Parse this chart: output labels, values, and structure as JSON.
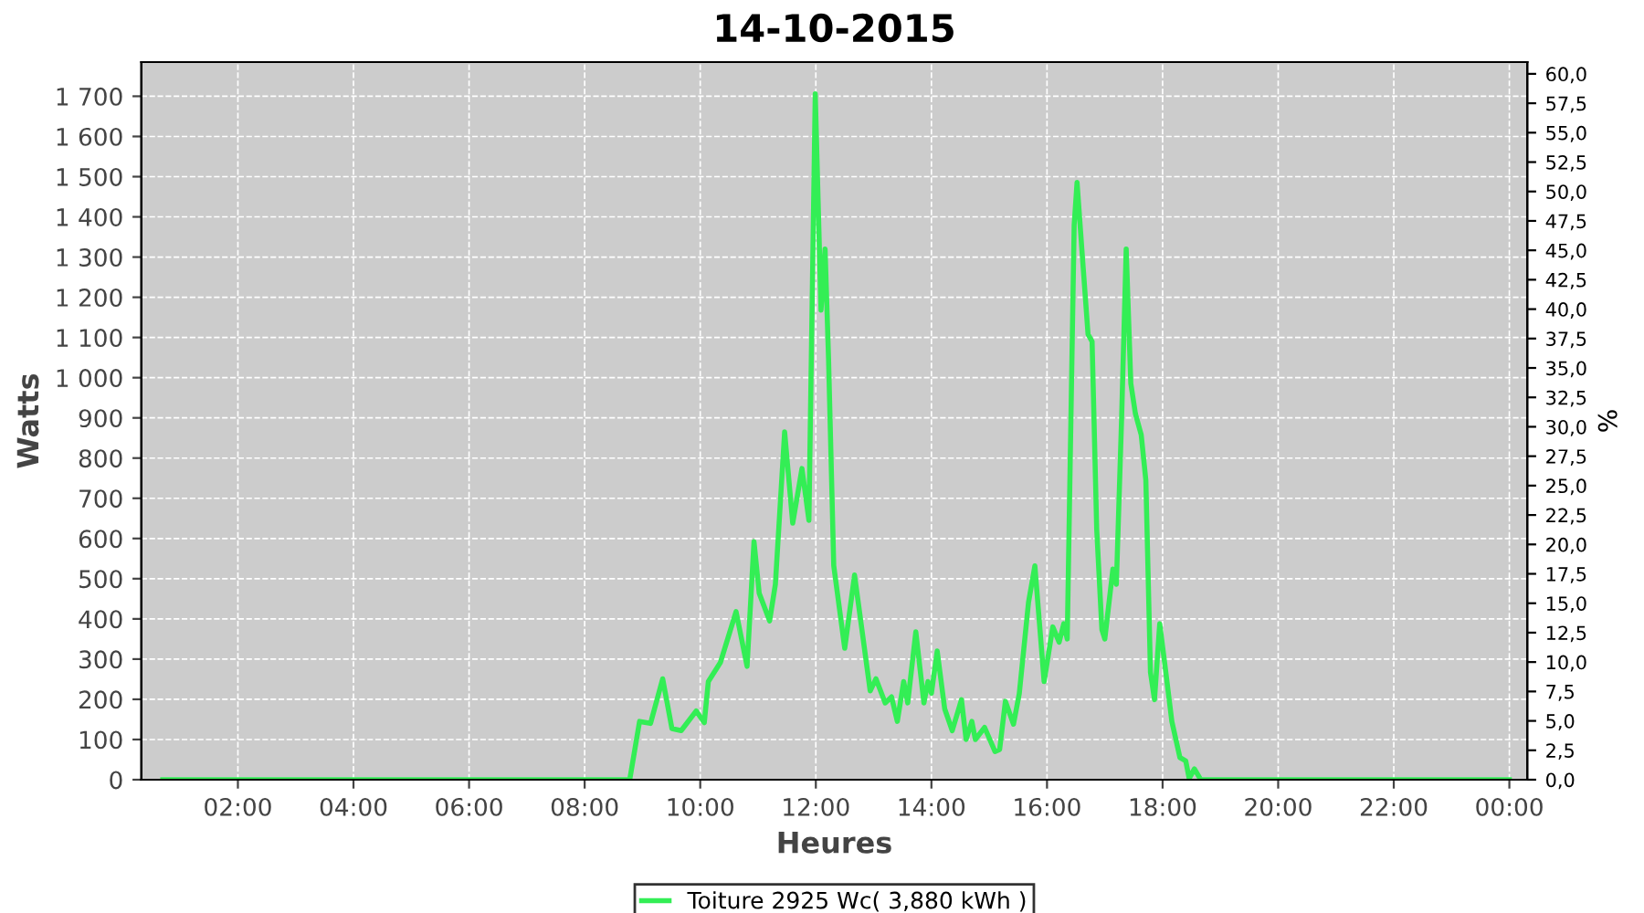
{
  "chart_data": {
    "type": "line",
    "title": "14-10-2015",
    "xlabel": "Heures",
    "ylabel": "Watts",
    "y2label": "%",
    "xlim": [
      0.33,
      24.31
    ],
    "ylim": [
      0,
      1785
    ],
    "y2lim": [
      0,
      61.0
    ],
    "xticks": [
      {
        "value": 2,
        "label": "02:00"
      },
      {
        "value": 4,
        "label": "04:00"
      },
      {
        "value": 6,
        "label": "06:00"
      },
      {
        "value": 8,
        "label": "08:00"
      },
      {
        "value": 10,
        "label": "10:00"
      },
      {
        "value": 12,
        "label": "12:00"
      },
      {
        "value": 14,
        "label": "14:00"
      },
      {
        "value": 16,
        "label": "16:00"
      },
      {
        "value": 18,
        "label": "18:00"
      },
      {
        "value": 20,
        "label": "20:00"
      },
      {
        "value": 22,
        "label": "22:00"
      },
      {
        "value": 24,
        "label": "00:00"
      }
    ],
    "yticks": [
      0,
      100,
      200,
      300,
      400,
      500,
      600,
      700,
      800,
      900,
      {
        "value": 1000,
        "label": "1 000"
      },
      {
        "value": 1100,
        "label": "1 100"
      },
      {
        "value": 1200,
        "label": "1 200"
      },
      {
        "value": 1300,
        "label": "1 300"
      },
      {
        "value": 1400,
        "label": "1 400"
      },
      {
        "value": 1500,
        "label": "1 500"
      },
      {
        "value": 1600,
        "label": "1 600"
      },
      {
        "value": 1700,
        "label": "1 700"
      }
    ],
    "y2ticks": [
      {
        "value": 0,
        "label": "0,0"
      },
      {
        "value": 2.5,
        "label": "2,5"
      },
      {
        "value": 5,
        "label": "5,0"
      },
      {
        "value": 7.5,
        "label": "7,5"
      },
      {
        "value": 10,
        "label": "10,0"
      },
      {
        "value": 12.5,
        "label": "12,5"
      },
      {
        "value": 15,
        "label": "15,0"
      },
      {
        "value": 17.5,
        "label": "17,5"
      },
      {
        "value": 20,
        "label": "20,0"
      },
      {
        "value": 22.5,
        "label": "22,5"
      },
      {
        "value": 25,
        "label": "25,0"
      },
      {
        "value": 27.5,
        "label": "27,5"
      },
      {
        "value": 30,
        "label": "30,0"
      },
      {
        "value": 32.5,
        "label": "32,5"
      },
      {
        "value": 35,
        "label": "35,0"
      },
      {
        "value": 37.5,
        "label": "37,5"
      },
      {
        "value": 40,
        "label": "40,0"
      },
      {
        "value": 42.5,
        "label": "42,5"
      },
      {
        "value": 45,
        "label": "45,0"
      },
      {
        "value": 47.5,
        "label": "47,5"
      },
      {
        "value": 50,
        "label": "50,0"
      },
      {
        "value": 52.5,
        "label": "52,5"
      },
      {
        "value": 55,
        "label": "55,0"
      },
      {
        "value": 57.5,
        "label": "57,5"
      },
      {
        "value": 60,
        "label": "60,0"
      }
    ],
    "grid": true,
    "legend": "bottom",
    "series": [
      {
        "name": "Toiture 2925 Wc( 3,880 kWh )",
        "color": "#33ee55",
        "x": [
          0.7,
          8.78,
          8.95,
          9.14,
          9.35,
          9.51,
          9.67,
          9.93,
          10.07,
          10.14,
          10.35,
          10.62,
          10.81,
          10.93,
          11.02,
          11.2,
          11.3,
          11.46,
          11.6,
          11.76,
          11.88,
          11.99,
          12.09,
          12.16,
          12.22,
          12.31,
          12.5,
          12.67,
          12.94,
          13.04,
          13.2,
          13.31,
          13.41,
          13.52,
          13.59,
          13.73,
          13.87,
          13.94,
          14.0,
          14.1,
          14.23,
          14.36,
          14.52,
          14.6,
          14.7,
          14.76,
          14.92,
          15.1,
          15.18,
          15.28,
          15.42,
          15.52,
          15.68,
          15.79,
          15.95,
          16.1,
          16.21,
          16.29,
          16.35,
          16.47,
          16.52,
          16.61,
          16.71,
          16.78,
          16.86,
          16.95,
          17.0,
          17.14,
          17.2,
          17.29,
          17.37,
          17.45,
          17.53,
          17.63,
          17.71,
          17.79,
          17.86,
          17.95,
          18.05,
          18.16,
          18.3,
          18.4,
          18.46,
          18.55,
          18.66,
          24.0
        ],
        "values": [
          0,
          0,
          145,
          140,
          251,
          127,
          122,
          171,
          142,
          244,
          292,
          418,
          282,
          592,
          464,
          395,
          486,
          865,
          638,
          774,
          645,
          1706,
          1168,
          1320,
          1047,
          532,
          327,
          509,
          221,
          251,
          191,
          206,
          145,
          244,
          191,
          368,
          191,
          244,
          215,
          320,
          176,
          122,
          199,
          100,
          145,
          100,
          130,
          70,
          75,
          195,
          138,
          214,
          441,
          532,
          244,
          380,
          342,
          388,
          350,
          1380,
          1486,
          1305,
          1108,
          1090,
          623,
          373,
          350,
          524,
          486,
          895,
          1320,
          986,
          910,
          858,
          745,
          267,
          199,
          388,
          274,
          145,
          55,
          47,
          3,
          27,
          0,
          0
        ]
      }
    ]
  }
}
